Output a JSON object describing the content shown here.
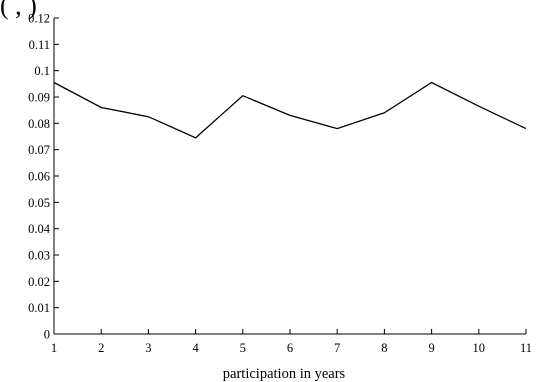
{
  "page": {
    "top_text": "(                    ,                     )"
  },
  "chart_data": {
    "type": "line",
    "title": "",
    "xlabel": "participation in years",
    "ylabel": "",
    "xlim": [
      1,
      11
    ],
    "ylim": [
      0,
      0.12
    ],
    "x_ticks": [
      "1",
      "2",
      "3",
      "4",
      "5",
      "6",
      "7",
      "8",
      "9",
      "10",
      "11"
    ],
    "y_ticks": [
      "0",
      "0.01",
      "0.02",
      "0.03",
      "0.04",
      "0.05",
      "0.06",
      "0.07",
      "0.08",
      "0.09",
      "0.1",
      "0.11",
      "0.12"
    ],
    "grid": false,
    "series": [
      {
        "x": [
          1,
          2,
          3,
          4,
          5,
          6,
          7,
          8,
          9,
          10,
          11
        ],
        "y": [
          0.0955,
          0.086,
          0.0825,
          0.0745,
          0.0905,
          0.083,
          0.078,
          0.084,
          0.0955,
          0.0865,
          0.078
        ],
        "color": "#000000"
      }
    ]
  }
}
